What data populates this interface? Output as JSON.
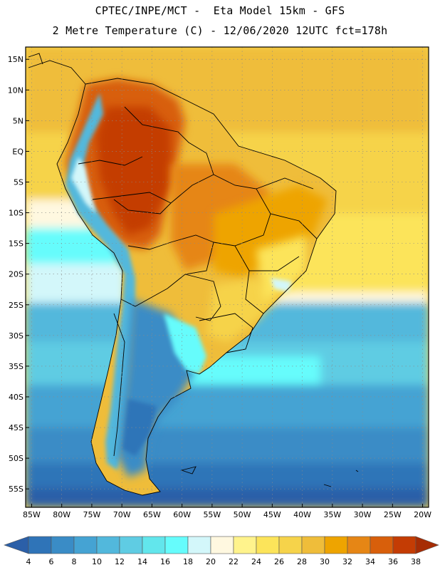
{
  "header": {
    "line1": "CPTEC/INPE/MCT -  Eta Model 15km - GFS",
    "line2": "2 Metre Temperature (C) - 12/06/2020 12UTC fct=178h"
  },
  "map": {
    "region": "South America",
    "lat_labels": [
      "15N",
      "10N",
      "5N",
      "EQ",
      "5S",
      "10S",
      "15S",
      "20S",
      "25S",
      "30S",
      "35S",
      "40S",
      "45S",
      "50S",
      "55S"
    ],
    "lat_values": [
      15,
      10,
      5,
      0,
      -5,
      -10,
      -15,
      -20,
      -25,
      -30,
      -35,
      -40,
      -45,
      -50,
      -55
    ],
    "lon_labels": [
      "85W",
      "80W",
      "75W",
      "70W",
      "65W",
      "60W",
      "55W",
      "50W",
      "45W",
      "40W",
      "35W",
      "30W",
      "25W",
      "20W"
    ],
    "lon_values": [
      -85,
      -80,
      -75,
      -70,
      -65,
      -60,
      -55,
      -50,
      -45,
      -40,
      -35,
      -30,
      -25,
      -20
    ],
    "lat_range": [
      -58,
      17
    ],
    "lon_range": [
      -86,
      -19
    ]
  },
  "colorbar": {
    "labels": [
      "4",
      "6",
      "8",
      "10",
      "12",
      "14",
      "16",
      "18",
      "20",
      "22",
      "24",
      "26",
      "28",
      "30",
      "32",
      "34",
      "36",
      "38"
    ],
    "colors": [
      "#2b5fa8",
      "#2f74b8",
      "#3a8cc6",
      "#45a3d3",
      "#52b8dc",
      "#5fcce3",
      "#62e6ec",
      "#66fcfc",
      "#d3f7fa",
      "#fff8e0",
      "#fff38c",
      "#fce45a",
      "#f6d34a",
      "#efbd3a",
      "#eea400",
      "#e68615",
      "#d85f0b",
      "#c43c04",
      "#a62c04"
    ]
  }
}
